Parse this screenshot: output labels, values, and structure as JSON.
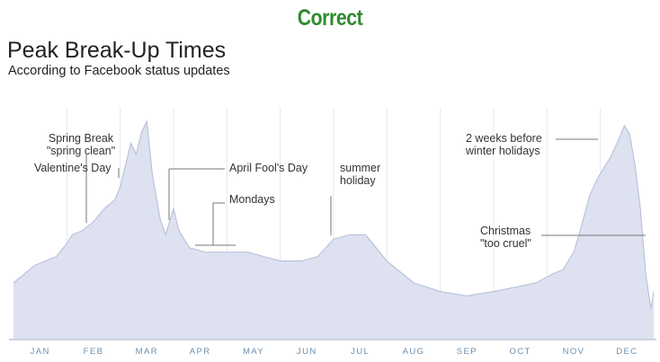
{
  "header": {
    "verdict": "Correct",
    "verdict_color": "#2e8b2e"
  },
  "chart_data": {
    "type": "area",
    "title": "Peak Break-Up Times",
    "subtitle": "According to Facebook status updates",
    "xlabel": "",
    "ylabel": "",
    "x_ticks": [
      "JAN",
      "FEB",
      "MAR",
      "APR",
      "MAY",
      "JUN",
      "JUL",
      "AUG",
      "SEP",
      "OCT",
      "NOV",
      "DEC"
    ],
    "grid": true,
    "colors": {
      "fill": "#dde1f0",
      "line": "#b4bcd8",
      "grid": "#e4e8f0",
      "axis": "#c9d3e2",
      "ticks": "#6a8fb0"
    },
    "x_range": [
      0,
      12
    ],
    "y_range": [
      0,
      100
    ],
    "series": [
      {
        "x": [
          0.0,
          0.2,
          0.4,
          0.6,
          0.8,
          1.0,
          1.1,
          1.3,
          1.5,
          1.7,
          1.9,
          2.0,
          2.1,
          2.2,
          2.3,
          2.4,
          2.5,
          2.6,
          2.75,
          2.85,
          3.0,
          3.1,
          3.3,
          3.6,
          4.0,
          4.4,
          4.7,
          5.0,
          5.4,
          5.7,
          6.0,
          6.3,
          6.6,
          7.0,
          7.5,
          8.0,
          8.5,
          9.0,
          9.4,
          9.8,
          10.1,
          10.3,
          10.5,
          10.6,
          10.8,
          10.95,
          11.1,
          11.2,
          11.35,
          11.45,
          11.55,
          11.65,
          11.75,
          11.85,
          11.95,
          12.0
        ],
        "y": [
          26,
          30,
          34,
          36,
          38,
          44,
          48,
          50,
          54,
          60,
          64,
          70,
          80,
          90,
          85,
          95,
          100,
          76,
          55,
          48,
          60,
          50,
          42,
          40,
          40,
          40,
          38,
          36,
          36,
          38,
          46,
          48,
          48,
          36,
          26,
          22,
          20,
          22,
          24,
          26,
          30,
          32,
          40,
          48,
          66,
          74,
          80,
          84,
          92,
          98,
          94,
          80,
          60,
          30,
          14,
          22
        ]
      }
    ],
    "annotations": [
      {
        "lines": [
          "Spring Break",
          "\"spring clean\""
        ]
      },
      {
        "lines": [
          "Valentine's Day"
        ]
      },
      {
        "lines": [
          "April Fool's Day"
        ]
      },
      {
        "lines": [
          "Mondays"
        ]
      },
      {
        "lines": [
          "summer",
          "holiday"
        ]
      },
      {
        "lines": [
          "2 weeks before",
          "winter holidays"
        ]
      },
      {
        "lines": [
          "Christmas",
          "\"too cruel\""
        ]
      }
    ]
  }
}
